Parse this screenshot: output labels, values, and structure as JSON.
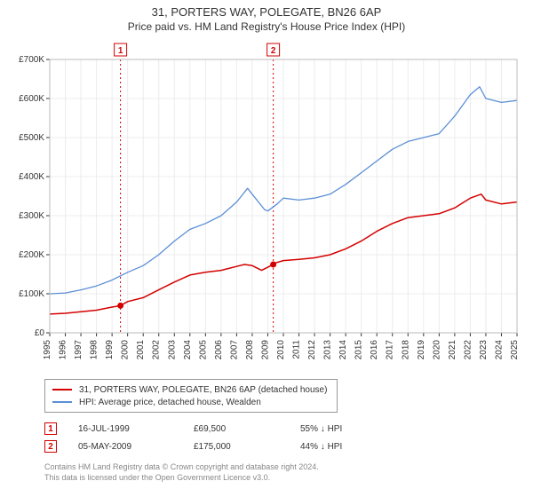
{
  "title": "31, PORTERS WAY, POLEGATE, BN26 6AP",
  "subtitle": "Price paid vs. HM Land Registry's House Price Index (HPI)",
  "chart": {
    "type": "line",
    "background_color": "#ffffff",
    "plot_background_color": "#ffffff",
    "grid_color": "#ececec",
    "axis_color": "#333333",
    "tick_color": "#333333",
    "tick_fontsize": 10,
    "label_font": "Arial",
    "x": {
      "min": 1995,
      "max": 2025,
      "ticks": [
        1995,
        1996,
        1997,
        1998,
        1999,
        2000,
        2001,
        2002,
        2003,
        2004,
        2005,
        2006,
        2007,
        2008,
        2009,
        2010,
        2011,
        2012,
        2013,
        2014,
        2015,
        2016,
        2017,
        2018,
        2019,
        2020,
        2021,
        2022,
        2023,
        2024,
        2025
      ],
      "tick_rotation": -90
    },
    "y": {
      "min": 0,
      "max": 700000,
      "ticks": [
        0,
        100000,
        200000,
        300000,
        400000,
        500000,
        600000,
        700000
      ],
      "tick_labels": [
        "£0",
        "£100K",
        "£200K",
        "£300K",
        "£400K",
        "£500K",
        "£600K",
        "£700K"
      ]
    },
    "series": [
      {
        "name": "price_paid",
        "label": "31, PORTERS WAY, POLEGATE, BN26 6AP (detached house)",
        "color": "#d40000",
        "line_width": 1.5,
        "data": [
          [
            1995,
            48000
          ],
          [
            1996,
            50000
          ],
          [
            1997,
            54000
          ],
          [
            1998,
            58000
          ],
          [
            1999,
            66000
          ],
          [
            1999.54,
            69500
          ],
          [
            2000,
            80000
          ],
          [
            2001,
            90000
          ],
          [
            2002,
            110000
          ],
          [
            2003,
            130000
          ],
          [
            2004,
            148000
          ],
          [
            2005,
            155000
          ],
          [
            2006,
            160000
          ],
          [
            2007,
            170000
          ],
          [
            2007.5,
            175000
          ],
          [
            2008,
            172000
          ],
          [
            2008.6,
            160000
          ],
          [
            2009,
            168000
          ],
          [
            2009.35,
            175000
          ],
          [
            2009.4,
            178000
          ],
          [
            2010,
            185000
          ],
          [
            2011,
            188000
          ],
          [
            2012,
            192000
          ],
          [
            2013,
            200000
          ],
          [
            2014,
            215000
          ],
          [
            2015,
            235000
          ],
          [
            2016,
            260000
          ],
          [
            2017,
            280000
          ],
          [
            2018,
            295000
          ],
          [
            2019,
            300000
          ],
          [
            2020,
            305000
          ],
          [
            2021,
            320000
          ],
          [
            2022,
            345000
          ],
          [
            2022.7,
            355000
          ],
          [
            2023,
            340000
          ],
          [
            2024,
            330000
          ],
          [
            2025,
            335000
          ]
        ]
      },
      {
        "name": "hpi",
        "label": "HPI: Average price, detached house, Wealden",
        "color": "#5b8fd6",
        "line_width": 1.3,
        "data": [
          [
            1995,
            100000
          ],
          [
            1996,
            102000
          ],
          [
            1997,
            110000
          ],
          [
            1998,
            120000
          ],
          [
            1999,
            135000
          ],
          [
            2000,
            155000
          ],
          [
            2001,
            172000
          ],
          [
            2002,
            200000
          ],
          [
            2003,
            235000
          ],
          [
            2004,
            265000
          ],
          [
            2005,
            280000
          ],
          [
            2006,
            300000
          ],
          [
            2007,
            335000
          ],
          [
            2007.7,
            370000
          ],
          [
            2008,
            355000
          ],
          [
            2008.8,
            315000
          ],
          [
            2009,
            312000
          ],
          [
            2009.6,
            330000
          ],
          [
            2010,
            345000
          ],
          [
            2011,
            340000
          ],
          [
            2012,
            345000
          ],
          [
            2013,
            355000
          ],
          [
            2014,
            380000
          ],
          [
            2015,
            410000
          ],
          [
            2016,
            440000
          ],
          [
            2017,
            470000
          ],
          [
            2018,
            490000
          ],
          [
            2019,
            500000
          ],
          [
            2020,
            510000
          ],
          [
            2021,
            555000
          ],
          [
            2022,
            610000
          ],
          [
            2022.6,
            630000
          ],
          [
            2023,
            600000
          ],
          [
            2024,
            590000
          ],
          [
            2025,
            595000
          ]
        ]
      }
    ],
    "events": [
      {
        "num": "1",
        "year": 1999.54,
        "price": 69500,
        "color": "#d40000",
        "date_label": "16-JUL-1999",
        "price_label": "£69,500",
        "pct_label": "55% ↓ HPI"
      },
      {
        "num": "2",
        "year": 2009.35,
        "price": 175000,
        "color": "#d40000",
        "date_label": "05-MAY-2009",
        "price_label": "£175,000",
        "pct_label": "44% ↓ HPI"
      }
    ],
    "event_line_color": "#d40000",
    "event_line_dash": "2,3",
    "marker_radius": 3.5
  },
  "legend": {
    "border_color": "#999999",
    "fontsize": 10
  },
  "footer": {
    "line1": "Contains HM Land Registry data © Crown copyright and database right 2024.",
    "line2": "This data is licensed under the Open Government Licence v3.0."
  }
}
